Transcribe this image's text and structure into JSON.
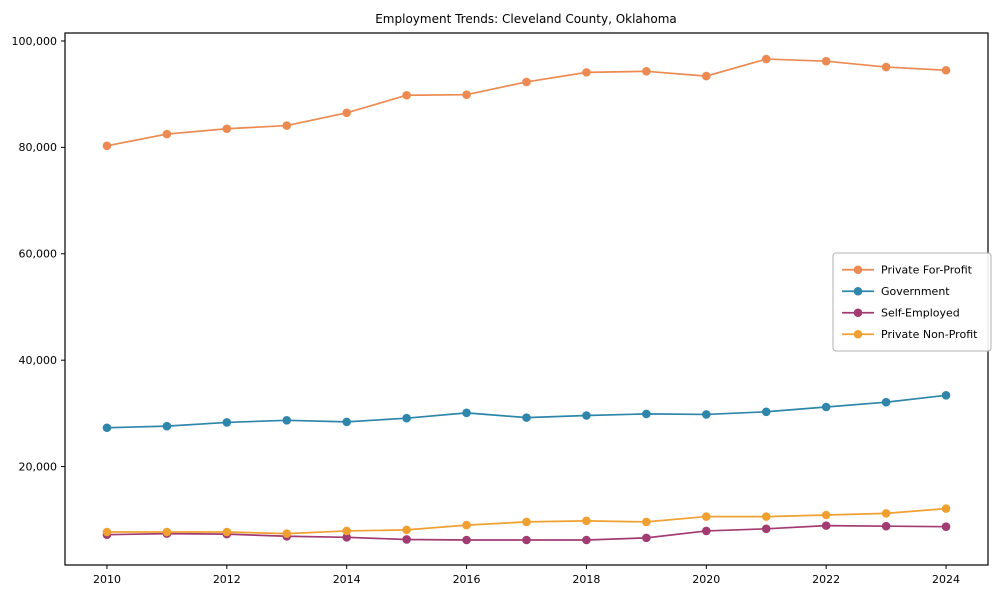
{
  "chart_data": {
    "type": "line",
    "title": "Employment Trends: Cleveland County, Oklahoma",
    "x": [
      2010,
      2011,
      2012,
      2013,
      2014,
      2015,
      2016,
      2017,
      2018,
      2019,
      2020,
      2021,
      2022,
      2023,
      2024
    ],
    "series": [
      {
        "name": "Private For-Profit",
        "color": "#EC8A52",
        "values": [
          80300,
          82500,
          83500,
          84100,
          86500,
          89800,
          89900,
          92300,
          94100,
          94300,
          93400,
          96600,
          96200,
          95100,
          94500
        ]
      },
      {
        "name": "Government",
        "color": "#2E86AB",
        "values": [
          27300,
          27600,
          28300,
          28700,
          28400,
          29100,
          30100,
          29200,
          29600,
          29900,
          29800,
          30300,
          31200,
          32100,
          33400
        ]
      },
      {
        "name": "Self-Employed",
        "color": "#A23B72",
        "values": [
          7200,
          7400,
          7300,
          6900,
          6700,
          6300,
          6200,
          6200,
          6200,
          6600,
          7900,
          8300,
          8900,
          8800,
          8700
        ]
      },
      {
        "name": "Private Non-Profit",
        "color": "#F0A030",
        "values": [
          7700,
          7700,
          7700,
          7400,
          7900,
          8100,
          9000,
          9600,
          9800,
          9600,
          10600,
          10600,
          10900,
          11200,
          12100
        ]
      }
    ],
    "xticks": [
      2010,
      2012,
      2014,
      2016,
      2018,
      2020,
      2022,
      2024
    ],
    "yticks": [
      20000,
      40000,
      60000,
      80000,
      100000
    ],
    "ytick_labels": [
      "20,000",
      "40,000",
      "60,000",
      "80,000",
      "100,000"
    ],
    "xlim": [
      2009.3,
      2024.7
    ],
    "ylim": [
      1500,
      101500
    ],
    "grid": false,
    "legend_position": "center right",
    "marker": "circle",
    "axis_color": "#000000",
    "legend_border_color": "#b0b0b0",
    "background_color": "#ffffff"
  }
}
